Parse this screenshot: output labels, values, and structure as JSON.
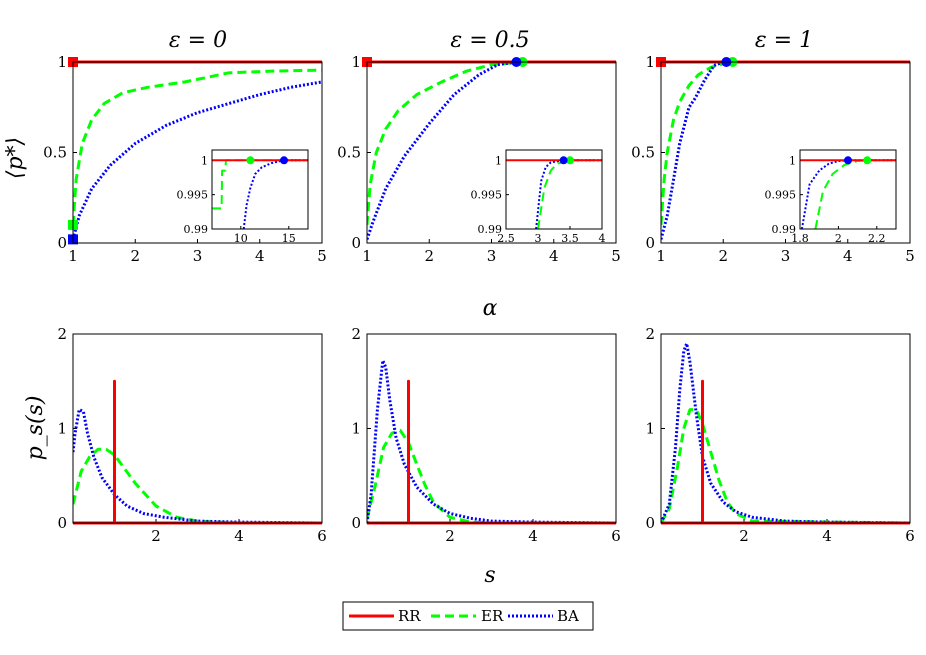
{
  "legend": {
    "items": [
      {
        "label": "RR",
        "color": "#ff0000",
        "style": "solid"
      },
      {
        "label": "ER",
        "color": "#00ff00",
        "style": "dashed"
      },
      {
        "label": "BA",
        "color": "#0000ff",
        "style": "dotted"
      }
    ]
  },
  "shared_labels": {
    "top_xlabel": "α",
    "top_ylabel": "⟨p*⟩",
    "bottom_xlabel": "s",
    "bottom_ylabel": "p_s(s)"
  },
  "chart_data": [
    {
      "type": "line",
      "title": "ε = 0",
      "xlabel": "α",
      "ylabel": "⟨p*⟩",
      "xlim": [
        1,
        5
      ],
      "ylim": [
        0,
        1
      ],
      "xticks": [
        "1",
        "2",
        "3",
        "4",
        "5"
      ],
      "yticks": [
        "0",
        "0.5",
        "1"
      ],
      "series": [
        {
          "name": "RR",
          "x": [
            1,
            5
          ],
          "y": [
            1,
            1
          ],
          "marker": {
            "x": 1,
            "y": 1,
            "shape": "square"
          }
        },
        {
          "name": "ER",
          "x": [
            1,
            1.05,
            1.15,
            1.3,
            1.5,
            1.8,
            2.2,
            2.8,
            3.5,
            4.2,
            5
          ],
          "y": [
            0.1,
            0.35,
            0.55,
            0.68,
            0.77,
            0.83,
            0.86,
            0.89,
            0.94,
            0.95,
            0.955
          ],
          "marker": {
            "x": 1,
            "y": 0.1,
            "shape": "square"
          }
        },
        {
          "name": "BA",
          "x": [
            1,
            1.1,
            1.3,
            1.6,
            2,
            2.5,
            3,
            3.5,
            4,
            4.5,
            5
          ],
          "y": [
            0.02,
            0.15,
            0.3,
            0.43,
            0.55,
            0.65,
            0.72,
            0.77,
            0.82,
            0.86,
            0.89
          ],
          "marker": {
            "x": 1,
            "y": 0.02,
            "shape": "square"
          }
        }
      ],
      "inset": {
        "xlim": [
          7,
          17
        ],
        "ylim": [
          0.99,
          1.0015
        ],
        "xticks": [
          "10",
          "15"
        ],
        "yticks": [
          "0.99",
          "0.995",
          "1"
        ],
        "series": [
          {
            "name": "RR",
            "x": [
              7,
              17
            ],
            "y": [
              1,
              1
            ]
          },
          {
            "name": "ER",
            "x": [
              7,
              8,
              8.05,
              8.4,
              8.45,
              17
            ],
            "y": [
              0.993,
              0.993,
              0.9985,
              0.9985,
              1,
              1
            ],
            "marker": {
              "x": 11,
              "y": 1
            }
          },
          {
            "name": "BA",
            "x": [
              10.3,
              10.6,
              11,
              11.5,
              12.2,
              13.2,
              14.5,
              17
            ],
            "y": [
              0.99,
              0.9935,
              0.996,
              0.998,
              0.999,
              0.9996,
              1,
              1
            ],
            "marker": {
              "x": 14.5,
              "y": 1
            }
          }
        ]
      }
    },
    {
      "type": "line",
      "title": "ε = 0.5",
      "xlabel": "α",
      "ylabel": "⟨p*⟩",
      "xlim": [
        1,
        5
      ],
      "ylim": [
        0,
        1
      ],
      "xticks": [
        "1",
        "2",
        "3",
        "4",
        "5"
      ],
      "yticks": [
        "0",
        "0.5",
        "1"
      ],
      "series": [
        {
          "name": "RR",
          "x": [
            1,
            5
          ],
          "y": [
            1,
            1
          ],
          "marker": {
            "x": 1,
            "y": 1,
            "shape": "square"
          }
        },
        {
          "name": "ER",
          "x": [
            1,
            1.05,
            1.15,
            1.3,
            1.5,
            1.8,
            2.2,
            2.6,
            3,
            3.5,
            5
          ],
          "y": [
            0.1,
            0.32,
            0.5,
            0.63,
            0.73,
            0.82,
            0.89,
            0.95,
            0.985,
            1,
            1
          ],
          "marker": {
            "x": 3.5,
            "y": 1,
            "shape": "circle"
          }
        },
        {
          "name": "BA",
          "x": [
            1,
            1.1,
            1.3,
            1.6,
            2,
            2.4,
            2.8,
            3.1,
            3.4,
            5
          ],
          "y": [
            0.02,
            0.12,
            0.3,
            0.48,
            0.66,
            0.82,
            0.93,
            0.985,
            1,
            1
          ],
          "marker": {
            "x": 3.4,
            "y": 1,
            "shape": "circle"
          }
        }
      ],
      "inset": {
        "xlim": [
          2.5,
          4
        ],
        "ylim": [
          0.99,
          1.0015
        ],
        "xticks": [
          "2.5",
          "3",
          "3.5",
          "4"
        ],
        "yticks": [
          "0.99",
          "0.995",
          "1"
        ],
        "series": [
          {
            "name": "RR",
            "x": [
              2.5,
              4
            ],
            "y": [
              1,
              1
            ]
          },
          {
            "name": "ER",
            "x": [
              3,
              3.1,
              3.2,
              3.3,
              3.5,
              4
            ],
            "y": [
              0.99,
              0.996,
              0.9985,
              0.9995,
              1,
              1
            ],
            "marker": {
              "x": 3.5,
              "y": 1
            }
          },
          {
            "name": "BA",
            "x": [
              2.97,
              3.05,
              3.12,
              3.2,
              3.4,
              4
            ],
            "y": [
              0.99,
              0.997,
              0.999,
              0.9997,
              1,
              1
            ],
            "marker": {
              "x": 3.4,
              "y": 1
            }
          }
        ]
      }
    },
    {
      "type": "line",
      "title": "ε = 1",
      "xlabel": "α",
      "ylabel": "⟨p*⟩",
      "xlim": [
        1,
        5
      ],
      "ylim": [
        0,
        1
      ],
      "xticks": [
        "1",
        "2",
        "3",
        "4",
        "5"
      ],
      "yticks": [
        "0",
        "0.5",
        "1"
      ],
      "series": [
        {
          "name": "RR",
          "x": [
            1,
            5
          ],
          "y": [
            1,
            1
          ],
          "marker": {
            "x": 1,
            "y": 1,
            "shape": "square"
          }
        },
        {
          "name": "ER",
          "x": [
            1,
            1.05,
            1.1,
            1.2,
            1.3,
            1.45,
            1.6,
            1.8,
            2,
            2.15,
            5
          ],
          "y": [
            0.1,
            0.35,
            0.5,
            0.68,
            0.78,
            0.87,
            0.93,
            0.97,
            0.99,
            1,
            1
          ],
          "marker": {
            "x": 2.15,
            "y": 1,
            "shape": "circle"
          }
        },
        {
          "name": "BA",
          "x": [
            1,
            1.1,
            1.2,
            1.3,
            1.45,
            1.55,
            1.7,
            1.85,
            2,
            5
          ],
          "y": [
            0.02,
            0.15,
            0.35,
            0.55,
            0.75,
            0.8,
            0.9,
            0.98,
            1,
            1
          ],
          "marker": {
            "x": 2.05,
            "y": 1,
            "shape": "circle"
          }
        }
      ],
      "inset": {
        "xlim": [
          1.8,
          2.3
        ],
        "ylim": [
          0.99,
          1.0015
        ],
        "xticks": [
          "1.8",
          "2",
          "2.2"
        ],
        "yticks": [
          "0.99",
          "0.995",
          "1"
        ],
        "series": [
          {
            "name": "RR",
            "x": [
              1.8,
              2.3
            ],
            "y": [
              1,
              1
            ]
          },
          {
            "name": "ER",
            "x": [
              1.88,
              1.92,
              1.97,
              2.03,
              2.1,
              2.15,
              2.3
            ],
            "y": [
              0.99,
              0.9955,
              0.998,
              0.9993,
              0.9999,
              1,
              1
            ],
            "marker": {
              "x": 2.15,
              "y": 1
            }
          },
          {
            "name": "BA",
            "x": [
              1.81,
              1.85,
              1.9,
              1.95,
              2.0,
              2.05,
              2.3
            ],
            "y": [
              0.99,
              0.9965,
              0.9985,
              0.9995,
              0.9999,
              1,
              1
            ],
            "marker": {
              "x": 2.05,
              "y": 1
            }
          }
        ]
      }
    },
    {
      "type": "line",
      "title": "",
      "xlabel": "s",
      "ylabel": "p_s(s)",
      "xlim": [
        0,
        6
      ],
      "ylim": [
        0,
        2
      ],
      "xticks": [
        "2",
        "4",
        "6"
      ],
      "yticks": [
        "0",
        "1",
        "2"
      ],
      "series": [
        {
          "name": "RR",
          "x": [
            0,
            1,
            1,
            1,
            6
          ],
          "y": [
            0,
            0,
            1.5,
            0,
            0
          ]
        },
        {
          "name": "ER",
          "x": [
            0,
            0.2,
            0.4,
            0.6,
            0.8,
            1.0,
            1.2,
            1.5,
            2.0,
            2.5,
            3.0,
            4.0,
            6
          ],
          "y": [
            0.2,
            0.55,
            0.7,
            0.78,
            0.78,
            0.72,
            0.6,
            0.42,
            0.18,
            0.06,
            0.02,
            0,
            0
          ]
        },
        {
          "name": "BA",
          "x": [
            0,
            0.05,
            0.15,
            0.25,
            0.35,
            0.5,
            0.7,
            1.0,
            1.3,
            1.7,
            2.2,
            3.0,
            4.0,
            6
          ],
          "y": [
            0.75,
            0.95,
            1.2,
            1.18,
            0.95,
            0.7,
            0.48,
            0.3,
            0.18,
            0.1,
            0.06,
            0.02,
            0.01,
            0
          ]
        }
      ]
    },
    {
      "type": "line",
      "title": "",
      "xlabel": "s",
      "ylabel": "p_s(s)",
      "xlim": [
        0,
        6
      ],
      "ylim": [
        0,
        2
      ],
      "xticks": [
        "2",
        "4",
        "6"
      ],
      "yticks": [
        "0",
        "1",
        "2"
      ],
      "series": [
        {
          "name": "RR",
          "x": [
            0,
            1,
            1,
            1,
            6
          ],
          "y": [
            0,
            0,
            1.5,
            0,
            0
          ]
        },
        {
          "name": "ER",
          "x": [
            0,
            0.2,
            0.4,
            0.6,
            0.8,
            1.0,
            1.2,
            1.4,
            1.6,
            2.0,
            2.5,
            3.0,
            6
          ],
          "y": [
            0.05,
            0.4,
            0.8,
            0.95,
            0.98,
            0.85,
            0.62,
            0.4,
            0.22,
            0.06,
            0.01,
            0,
            0
          ]
        },
        {
          "name": "BA",
          "x": [
            0,
            0.1,
            0.25,
            0.38,
            0.45,
            0.55,
            0.7,
            0.9,
            1.2,
            1.6,
            2.0,
            2.5,
            3.0,
            4.0,
            6
          ],
          "y": [
            0,
            0.3,
            1.2,
            1.72,
            1.65,
            1.3,
            0.9,
            0.62,
            0.38,
            0.2,
            0.1,
            0.05,
            0.02,
            0.01,
            0
          ]
        }
      ]
    },
    {
      "type": "line",
      "title": "",
      "xlabel": "s",
      "ylabel": "p_s(s)",
      "xlim": [
        0,
        6
      ],
      "ylim": [
        0,
        2
      ],
      "xticks": [
        "2",
        "4",
        "6"
      ],
      "yticks": [
        "0",
        "1",
        "2"
      ],
      "series": [
        {
          "name": "RR",
          "x": [
            0,
            1,
            1,
            1,
            6
          ],
          "y": [
            0,
            0,
            1.5,
            0,
            0
          ]
        },
        {
          "name": "ER",
          "x": [
            0,
            0.2,
            0.4,
            0.55,
            0.7,
            0.85,
            1.0,
            1.2,
            1.4,
            1.6,
            1.8,
            2.2,
            6
          ],
          "y": [
            0,
            0.15,
            0.6,
            1.0,
            1.2,
            1.2,
            1.05,
            0.75,
            0.45,
            0.22,
            0.1,
            0.02,
            0
          ]
        },
        {
          "name": "BA",
          "x": [
            0,
            0.2,
            0.35,
            0.45,
            0.55,
            0.62,
            0.7,
            0.85,
            1.0,
            1.2,
            1.5,
            1.8,
            2.2,
            3.0,
            4.0,
            6
          ],
          "y": [
            0,
            0.2,
            0.8,
            1.4,
            1.82,
            1.9,
            1.7,
            1.15,
            0.7,
            0.42,
            0.22,
            0.12,
            0.06,
            0.02,
            0.01,
            0
          ]
        }
      ]
    }
  ]
}
